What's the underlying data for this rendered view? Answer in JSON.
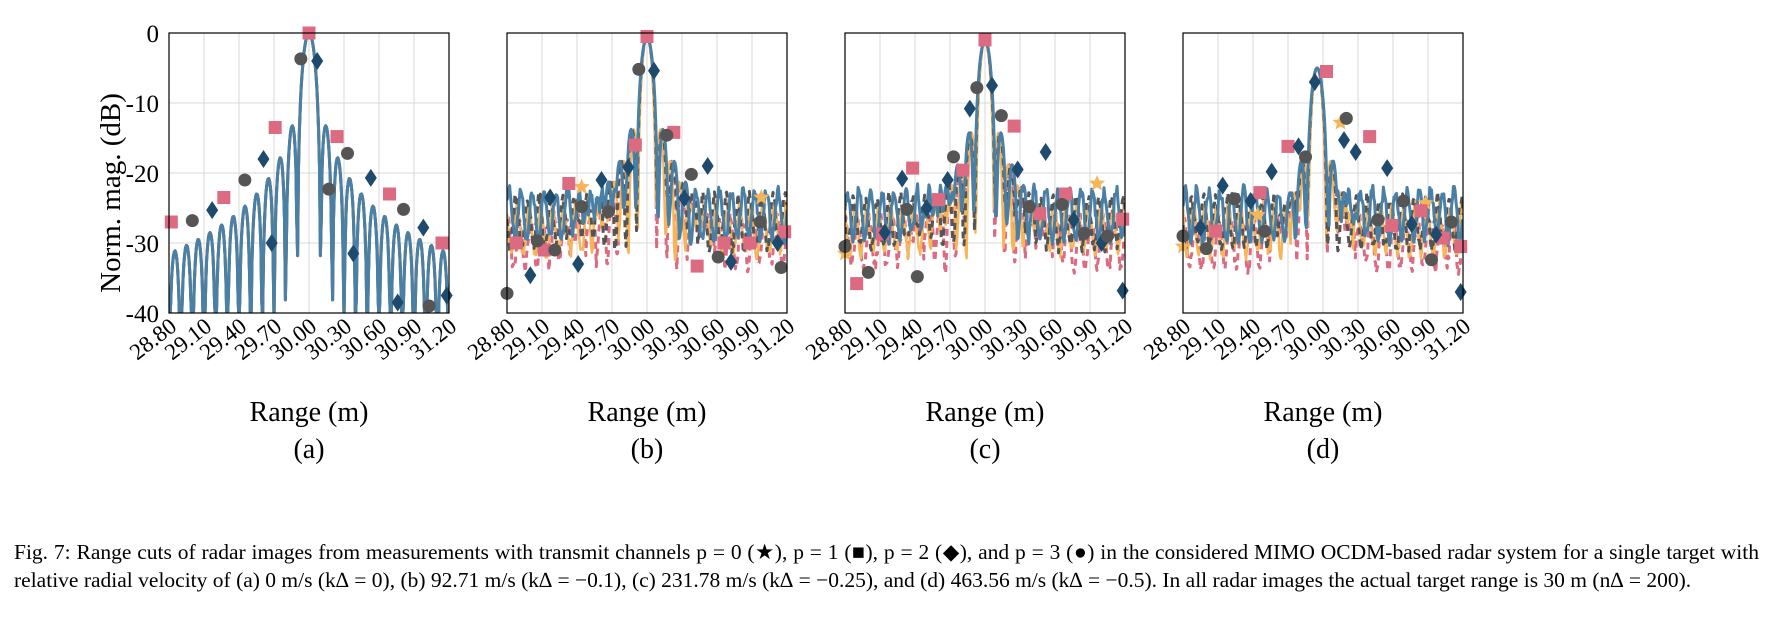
{
  "figure": {
    "ylabel": "Norm. mag. (dB)",
    "xlabel": "Range (m)",
    "y_ticks": [
      "0",
      "-10",
      "-20",
      "-30",
      "-40"
    ],
    "x_ticks": [
      "28.80",
      "29.10",
      "29.40",
      "29.70",
      "30.00",
      "30.30",
      "30.60",
      "30.90",
      "31.20"
    ],
    "subfigure_labels": [
      "(a)",
      "(b)",
      "(c)",
      "(d)"
    ]
  },
  "colors": {
    "p0_star": "#f7b55a",
    "p1_square": "#dc6a80",
    "p2_diamond": "#1e4a6e",
    "p3_circle": "#555555",
    "main_line": "#4a80a6",
    "grid": "#d9d9d9"
  },
  "chart_data": [
    {
      "type": "line",
      "panel": "(a)",
      "xlim": [
        28.8,
        31.2
      ],
      "ylim": [
        -40,
        0
      ],
      "main_lobe": {
        "center": 30.0,
        "peak_db": 0
      },
      "markers": [
        {
          "p": 1,
          "points": [
            [
              28.82,
              -27
            ],
            [
              29.27,
              -23.5
            ],
            [
              29.71,
              -13.5
            ],
            [
              30.0,
              0
            ],
            [
              30.24,
              -14.8
            ],
            [
              30.69,
              -23
            ],
            [
              31.14,
              -30
            ]
          ]
        },
        {
          "p": 2,
          "points": [
            [
              29.17,
              -25.3
            ],
            [
              29.61,
              -18
            ],
            [
              29.68,
              -30
            ],
            [
              30.07,
              -4
            ],
            [
              30.38,
              -31.5
            ],
            [
              30.53,
              -20.7
            ],
            [
              30.76,
              -38.5
            ],
            [
              30.98,
              -27.8
            ],
            [
              31.18,
              -37.5
            ]
          ]
        },
        {
          "p": 3,
          "points": [
            [
              29.0,
              -26.8
            ],
            [
              29.45,
              -21
            ],
            [
              29.93,
              -3.7
            ],
            [
              30.17,
              -22.3
            ],
            [
              30.33,
              -17.2
            ],
            [
              30.81,
              -25.2
            ],
            [
              31.03,
              -39
            ]
          ]
        }
      ]
    },
    {
      "type": "line",
      "panel": "(b)",
      "xlim": [
        28.8,
        31.2
      ],
      "ylim": [
        -40,
        0
      ],
      "main_lobe": {
        "center": 30.0,
        "peak_db": -0.5
      },
      "markers": [
        {
          "p": 0,
          "points": [
            [
              29.44,
              -22
            ],
            [
              30.98,
              -23.5
            ]
          ]
        },
        {
          "p": 1,
          "points": [
            [
              28.88,
              -30
            ],
            [
              29.12,
              -31
            ],
            [
              29.33,
              -21.5
            ],
            [
              29.9,
              -16
            ],
            [
              30.0,
              -0.5
            ],
            [
              30.23,
              -14.2
            ],
            [
              30.43,
              -33.3
            ],
            [
              30.66,
              -30
            ],
            [
              30.88,
              -30
            ],
            [
              31.18,
              -28.4
            ]
          ]
        },
        {
          "p": 2,
          "points": [
            [
              29.0,
              -34.6
            ],
            [
              29.17,
              -23.5
            ],
            [
              29.41,
              -33
            ],
            [
              29.61,
              -21
            ],
            [
              29.84,
              -19.2
            ],
            [
              30.06,
              -5.4
            ],
            [
              30.32,
              -23.6
            ],
            [
              30.52,
              -19
            ],
            [
              30.72,
              -32.7
            ],
            [
              31.12,
              -30
            ]
          ]
        },
        {
          "p": 3,
          "points": [
            [
              28.8,
              -37.2
            ],
            [
              29.06,
              -29.7
            ],
            [
              29.21,
              -31
            ],
            [
              29.44,
              -24.8
            ],
            [
              29.67,
              -25.5
            ],
            [
              29.93,
              -5.2
            ],
            [
              30.17,
              -14.6
            ],
            [
              30.38,
              -20.2
            ],
            [
              30.61,
              -32
            ],
            [
              30.97,
              -27
            ],
            [
              31.15,
              -33.5
            ]
          ]
        }
      ]
    },
    {
      "type": "line",
      "panel": "(c)",
      "xlim": [
        28.8,
        31.2
      ],
      "ylim": [
        -40,
        0
      ],
      "main_lobe": {
        "center": 30.0,
        "peak_db": -1
      },
      "markers": [
        {
          "p": 0,
          "points": [
            [
              28.8,
              -31.5
            ],
            [
              30.96,
              -21.5
            ]
          ]
        },
        {
          "p": 1,
          "points": [
            [
              28.9,
              -35.8
            ],
            [
              29.12,
              -28.7
            ],
            [
              29.38,
              -19.3
            ],
            [
              29.6,
              -23.8
            ],
            [
              29.81,
              -19.6
            ],
            [
              30.0,
              -1
            ],
            [
              30.25,
              -13.3
            ],
            [
              30.47,
              -25.8
            ],
            [
              30.69,
              -23
            ],
            [
              31.18,
              -26.6
            ]
          ]
        },
        {
          "p": 2,
          "points": [
            [
              29.14,
              -28.5
            ],
            [
              29.29,
              -20.8
            ],
            [
              29.5,
              -25
            ],
            [
              29.68,
              -21
            ],
            [
              29.87,
              -10.8
            ],
            [
              30.06,
              -7.5
            ],
            [
              30.28,
              -19.5
            ],
            [
              30.52,
              -17
            ],
            [
              30.76,
              -26.7
            ],
            [
              31.0,
              -30
            ],
            [
              31.18,
              -36.8
            ]
          ]
        },
        {
          "p": 3,
          "points": [
            [
              28.8,
              -30.5
            ],
            [
              29.0,
              -34.2
            ],
            [
              29.33,
              -25.2
            ],
            [
              29.42,
              -34.8
            ],
            [
              29.73,
              -17.7
            ],
            [
              29.93,
              -7.8
            ],
            [
              30.14,
              -11.8
            ],
            [
              30.38,
              -24.8
            ],
            [
              30.66,
              -24.5
            ],
            [
              30.85,
              -28.6
            ],
            [
              31.05,
              -29
            ]
          ]
        }
      ]
    },
    {
      "type": "line",
      "panel": "(d)",
      "xlim": [
        28.8,
        31.2
      ],
      "ylim": [
        -40,
        0
      ],
      "main_lobe": {
        "center": 29.95,
        "peak_db": -5
      },
      "markers": [
        {
          "p": 0,
          "points": [
            [
              28.8,
              -30.5
            ],
            [
              29.44,
              -26
            ],
            [
              30.15,
              -12.8
            ],
            [
              30.88,
              -24.3
            ]
          ]
        },
        {
          "p": 1,
          "points": [
            [
              29.08,
              -28.3
            ],
            [
              29.46,
              -22.8
            ],
            [
              29.7,
              -16.2
            ],
            [
              30.03,
              -5.5
            ],
            [
              30.4,
              -14.8
            ],
            [
              30.59,
              -27.5
            ],
            [
              30.84,
              -25.4
            ],
            [
              31.03,
              -29.3
            ],
            [
              31.18,
              -30.5
            ]
          ]
        },
        {
          "p": 2,
          "points": [
            [
              28.95,
              -27.8
            ],
            [
              29.14,
              -21.8
            ],
            [
              29.38,
              -24
            ],
            [
              29.56,
              -19.8
            ],
            [
              29.79,
              -16.2
            ],
            [
              29.93,
              -7
            ],
            [
              30.18,
              -15.3
            ],
            [
              30.28,
              -17
            ],
            [
              30.55,
              -19.3
            ],
            [
              30.76,
              -27.3
            ],
            [
              30.97,
              -28.8
            ],
            [
              31.18,
              -37
            ]
          ]
        },
        {
          "p": 3,
          "points": [
            [
              28.8,
              -29
            ],
            [
              29.0,
              -30.8
            ],
            [
              29.24,
              -23.7
            ],
            [
              29.5,
              -28.3
            ],
            [
              29.85,
              -17.7
            ],
            [
              30.2,
              -12.2
            ],
            [
              30.47,
              -26.7
            ],
            [
              30.69,
              -24
            ],
            [
              30.93,
              -32.4
            ],
            [
              31.1,
              -27
            ]
          ]
        }
      ]
    }
  ],
  "caption": {
    "line1": "Fig. 7: Range cuts of radar images from measurements with transmit channels p = 0 (★), p = 1 (■), p = 2 (◆), and p = 3 (●) in the considered",
    "line2": "MIMO OCDM-based radar system for a single target with relative radial velocity of (a) 0 m/s (k∆ = 0), (b) 92.71 m/s (k∆ = −0.1), (c) 231.78 m/s",
    "line3": "(k∆ = −0.25), and (d) 463.56 m/s (k∆ = −0.5). In all radar images the actual target range is 30 m (n∆ = 200)."
  }
}
